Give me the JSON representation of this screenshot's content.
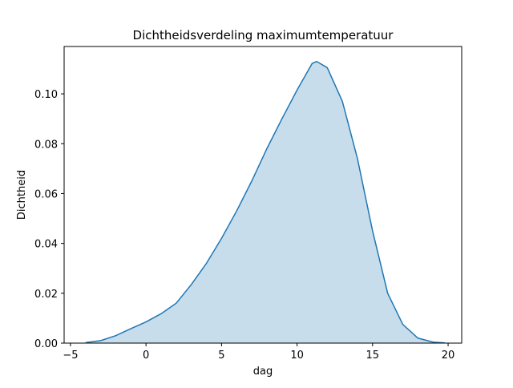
{
  "chart_data": {
    "type": "area",
    "title": "Dichtheidsverdeling maximumtemperatuur",
    "xlabel": "dag",
    "ylabel": "Dichtheid",
    "x": [
      -4,
      -3,
      -2,
      -1,
      0,
      1,
      2,
      3,
      4,
      5,
      6,
      7,
      8,
      9,
      10,
      11,
      11.3,
      12,
      13,
      14,
      15,
      16,
      17,
      18,
      19,
      19.8
    ],
    "values": [
      0.0002,
      0.001,
      0.003,
      0.0058,
      0.0085,
      0.0118,
      0.016,
      0.0235,
      0.032,
      0.042,
      0.053,
      0.065,
      0.078,
      0.09,
      0.1015,
      0.1122,
      0.113,
      0.1105,
      0.097,
      0.074,
      0.045,
      0.02,
      0.0075,
      0.002,
      0.0004,
      0.0001
    ],
    "color": "#1f77b4",
    "xlim": [
      -5.42,
      20.9
    ],
    "ylim": [
      0,
      0.119
    ],
    "xticks": [
      {
        "value": -5,
        "label": "−5"
      },
      0,
      5,
      10,
      15,
      20
    ],
    "yticks": [
      {
        "value": 0,
        "label": "0.00"
      },
      0.02,
      0.04,
      0.06,
      0.08,
      {
        "value": 0.1,
        "label": "0.10"
      }
    ]
  }
}
